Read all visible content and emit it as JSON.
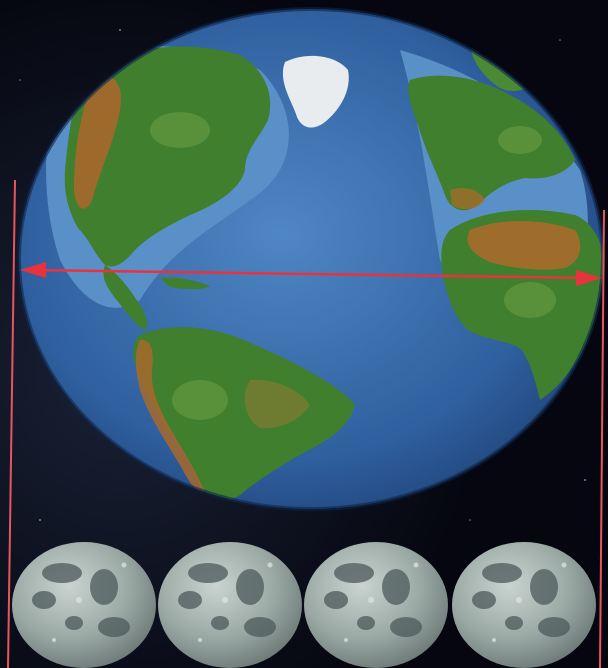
{
  "scene": {
    "subject": "earth-and-four-moons-size-comparison",
    "moon_count": 4,
    "colors": {
      "space": "#05060f",
      "ocean": "#2f5f9e",
      "ocean_light": "#5a8cc8",
      "land": "#3f7f2e",
      "land_dry": "#b06a2a",
      "ice": "#e8ecef",
      "moon": "#9aa8a4",
      "moon_dark": "#4c5a5a",
      "arrow": "#e8333d",
      "guide_line": "#e8555e"
    },
    "icons": {
      "earth": "earth-globe-icon",
      "moon": "moon-icon",
      "diameter": "double-arrow-icon"
    }
  }
}
